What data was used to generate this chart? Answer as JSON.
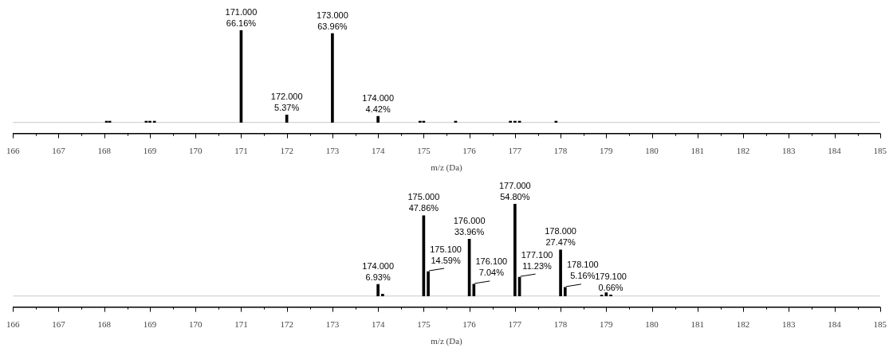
{
  "chart_data": [
    {
      "type": "bar",
      "xlabel": "m/z (Da)",
      "color": "#000000",
      "tick_labels": "x",
      "x": [
        168.05,
        168.12,
        168.92,
        169.0,
        169.1,
        171.0,
        172.0,
        173.0,
        174.0,
        174.92,
        175.0,
        175.7,
        176.9,
        177.0,
        177.1,
        177.9
      ],
      "values": [
        1.0,
        1.0,
        1.0,
        1.0,
        1.0,
        66.16,
        5.37,
        63.96,
        4.42,
        1.0,
        1.0,
        1.0,
        1.0,
        1.0,
        1.0,
        1.0
      ],
      "ref_lines": [
        {
          "axis": "y",
          "value": 0,
          "color": "#c8c8c8"
        }
      ],
      "value_labels": [
        null,
        null,
        null,
        null,
        null,
        "66.16%",
        "5.37%",
        "63.96%",
        "4.42%",
        null,
        null,
        null,
        null,
        null,
        null,
        null
      ],
      "annotations": [
        {
          "text": "171.000",
          "x": 171.0,
          "y": 66.16
        },
        {
          "text": "172.000",
          "x": 172.0,
          "y": 5.37
        },
        {
          "text": "173.000",
          "x": 173.0,
          "y": 63.96
        },
        {
          "text": "174.000",
          "x": 174.0,
          "y": 4.42
        }
      ],
      "xlim": [
        166,
        185
      ],
      "xticks": [
        166,
        167,
        168,
        169,
        170,
        171,
        172,
        173,
        174,
        175,
        176,
        177,
        178,
        179,
        180,
        181,
        182,
        183,
        184,
        185
      ]
    },
    {
      "type": "bar",
      "xlabel": "m/z (Da)",
      "color": "#000000",
      "tick_labels": "x",
      "x": [
        174.0,
        174.1,
        175.0,
        175.1,
        176.0,
        176.1,
        177.0,
        177.1,
        178.0,
        178.1,
        178.9,
        179.0,
        179.1
      ],
      "values": [
        6.93,
        1.2,
        47.86,
        14.59,
        33.96,
        7.04,
        54.8,
        11.23,
        27.47,
        5.16,
        0.6,
        2.0,
        0.66
      ],
      "ref_lines": [
        {
          "axis": "y",
          "value": 0,
          "color": "#c8c8c8"
        }
      ],
      "value_labels": [
        "6.93%",
        null,
        "47.86%",
        "14.59%",
        "33.96%",
        "7.04%",
        "54.80%",
        "11.23%",
        "27.47%",
        "5.16%",
        null,
        null,
        "0.66%"
      ],
      "annotations": [
        {
          "text": "174.000",
          "x": 174.0,
          "y": 6.93
        },
        {
          "text": "175.000",
          "x": 175.0,
          "y": 47.86
        },
        {
          "text": "175.100",
          "x": 175.1,
          "y": 14.59
        },
        {
          "text": "176.000",
          "x": 176.0,
          "y": 33.96
        },
        {
          "text": "176.100",
          "x": 176.1,
          "y": 7.04
        },
        {
          "text": "177.000",
          "x": 177.0,
          "y": 54.8
        },
        {
          "text": "177.100",
          "x": 177.1,
          "y": 11.23
        },
        {
          "text": "178.000",
          "x": 178.0,
          "y": 27.47
        },
        {
          "text": "178.100",
          "x": 178.1,
          "y": 5.16
        },
        {
          "text": "179.100",
          "x": 179.1,
          "y": 0.66
        }
      ],
      "xlim": [
        166,
        185
      ],
      "xticks": [
        166,
        167,
        168,
        169,
        170,
        171,
        172,
        173,
        174,
        175,
        176,
        177,
        178,
        179,
        180,
        181,
        182,
        183,
        184,
        185
      ]
    }
  ]
}
